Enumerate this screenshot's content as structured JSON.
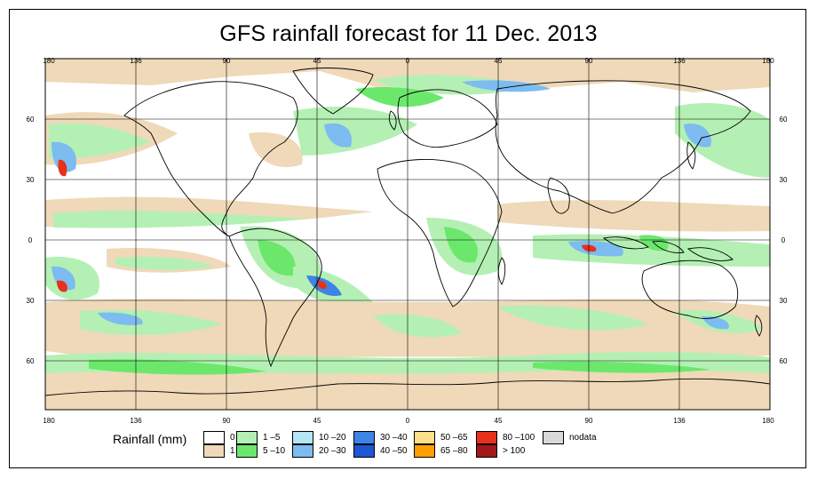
{
  "title": "GFS rainfall forecast for 11 Dec. 2013",
  "map": {
    "lon_ticks": [
      "180",
      "136",
      "90",
      "45",
      "0",
      "45",
      "90",
      "136",
      "180"
    ],
    "lat_ticks": [
      "60",
      "30",
      "0",
      "30",
      "60"
    ],
    "colors": {
      "ocean_land": "#ffffff",
      "outline": "#000000",
      "gridline": "#000000"
    }
  },
  "legend": {
    "title": "Rainfall (mm)",
    "items": [
      {
        "label": "0",
        "color": "#ffffff"
      },
      {
        "label": "1",
        "color": "#efd9b8"
      },
      {
        "label": "1 –5",
        "color": "#b4f0b4"
      },
      {
        "label": "5 –10",
        "color": "#6be86b"
      },
      {
        "label": "10 –20",
        "color": "#b4e6f5"
      },
      {
        "label": "20 –30",
        "color": "#7cbcf0"
      },
      {
        "label": "30 –40",
        "color": "#3d84e6"
      },
      {
        "label": "40 –50",
        "color": "#1e56d6"
      },
      {
        "label": "50 –65",
        "color": "#ffe08a"
      },
      {
        "label": "65 –80",
        "color": "#ffa000"
      },
      {
        "label": "80 –100",
        "color": "#e8301a"
      },
      {
        "label": "> 100",
        "color": "#a01818"
      },
      {
        "label": "nodata",
        "color": "#d9d9d9"
      }
    ]
  }
}
